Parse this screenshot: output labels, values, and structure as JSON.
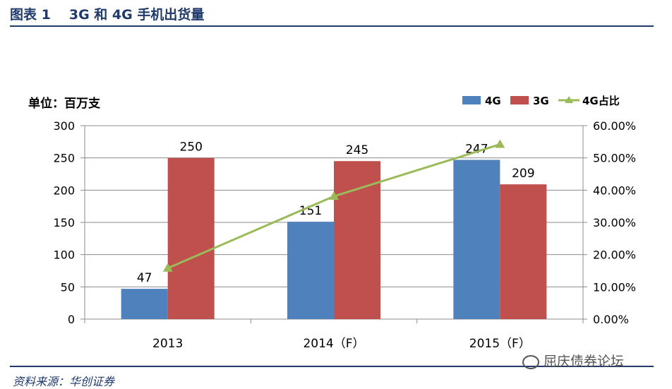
{
  "header": {
    "figure_label": "图表 1",
    "figure_title": "3G 和 4G 手机出货量"
  },
  "footer": {
    "source": "资料来源：华创证券",
    "watermark": "屈庆债券论坛"
  },
  "colors": {
    "series_4g": "#4f81bd",
    "series_3g": "#c0504d",
    "share_line": "#9bbb59",
    "rule": "#1f3a6b"
  },
  "chart_data": {
    "type": "bar",
    "unit_label": "单位：百万支",
    "categories": [
      "2013",
      "2014（F）",
      "2015（F）"
    ],
    "series": [
      {
        "name": "4G",
        "type": "bar",
        "axis": "left",
        "values": [
          47,
          151,
          247
        ],
        "labels": [
          "47",
          "151",
          "247"
        ]
      },
      {
        "name": "3G",
        "type": "bar",
        "axis": "left",
        "values": [
          250,
          245,
          209
        ],
        "labels": [
          "250",
          "245",
          "209"
        ]
      },
      {
        "name": "4G占比",
        "type": "line",
        "axis": "right",
        "values": [
          0.158,
          0.381,
          0.542
        ]
      }
    ],
    "y_left": {
      "min": 0,
      "max": 300,
      "ticks": [
        "0",
        "50",
        "100",
        "150",
        "200",
        "250",
        "300"
      ]
    },
    "y_right": {
      "min": 0,
      "max": 0.6,
      "ticks": [
        "0.00%",
        "10.00%",
        "20.00%",
        "30.00%",
        "40.00%",
        "50.00%",
        "60.00%"
      ]
    },
    "grid": "horizontal",
    "legend_position": "top-right"
  }
}
